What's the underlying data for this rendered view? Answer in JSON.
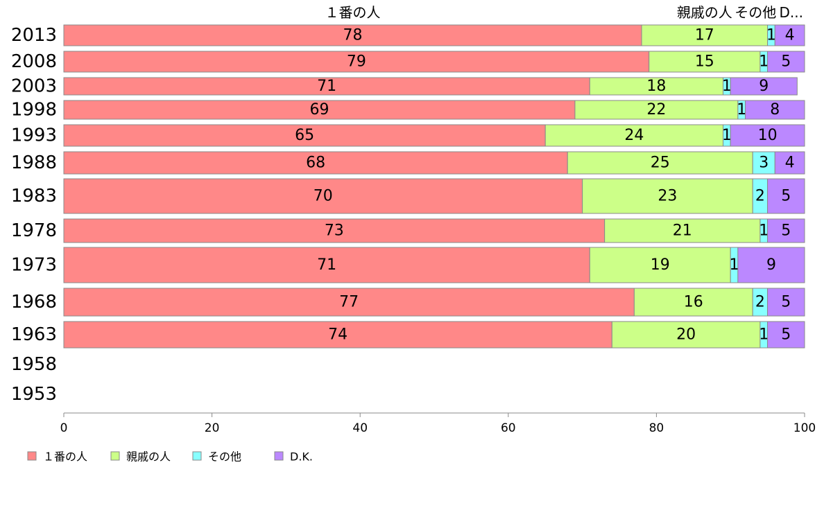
{
  "chart_data": {
    "type": "bar",
    "orientation": "horizontal",
    "stacked": true,
    "title": "",
    "xlabel": "",
    "ylabel": "",
    "xlim": [
      0,
      100
    ],
    "x_ticks": [
      "0",
      "20",
      "40",
      "60",
      "80",
      "100"
    ],
    "grid": false,
    "legend_position": "bottom-left",
    "categories": [
      "2013",
      "2008",
      "2003",
      "1998",
      "1993",
      "1988",
      "1983",
      "1978",
      "1973",
      "1968",
      "1963",
      "1958",
      "1953"
    ],
    "series": [
      {
        "name": "１番の人",
        "color": "#ff8888",
        "values": [
          78,
          79,
          71,
          69,
          65,
          68,
          70,
          73,
          71,
          77,
          74,
          null,
          null
        ]
      },
      {
        "name": "親戚の人",
        "color": "#ccff88",
        "values": [
          17,
          15,
          18,
          22,
          24,
          25,
          23,
          21,
          19,
          16,
          20,
          null,
          null
        ]
      },
      {
        "name": "その他",
        "color": "#88ffff",
        "values": [
          1,
          1,
          1,
          1,
          1,
          3,
          2,
          1,
          1,
          2,
          1,
          null,
          null
        ]
      },
      {
        "name": "D.K.",
        "color": "#bb88ff",
        "values": [
          4,
          5,
          9,
          8,
          10,
          4,
          5,
          5,
          9,
          5,
          5,
          null,
          null
        ]
      }
    ],
    "column_labels": [
      "１番の人",
      "親戚の人",
      "その他",
      "D..."
    ]
  }
}
